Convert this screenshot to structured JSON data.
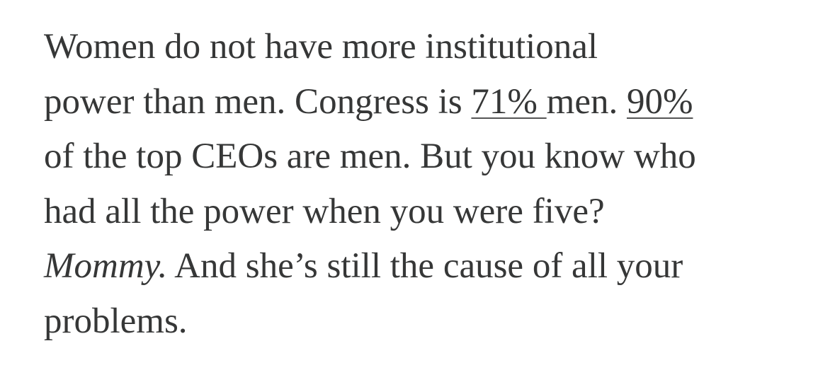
{
  "paragraph": {
    "lines": [
      [
        {
          "text": "Women do not have more institutional"
        }
      ],
      [
        {
          "text": "power than men. Congress is "
        },
        {
          "text": "71% ",
          "link": true
        },
        {
          "text": "men. "
        },
        {
          "text": "90%",
          "link": true
        }
      ],
      [
        {
          "text": "of the top CEOs are men. But you know who"
        }
      ],
      [
        {
          "text": "had all the power when you were five?"
        }
      ],
      [
        {
          "text": "Mommy.",
          "italic": true
        },
        {
          "text": " And she’s still the cause of all your"
        }
      ],
      [
        {
          "text": "problems."
        }
      ]
    ]
  }
}
